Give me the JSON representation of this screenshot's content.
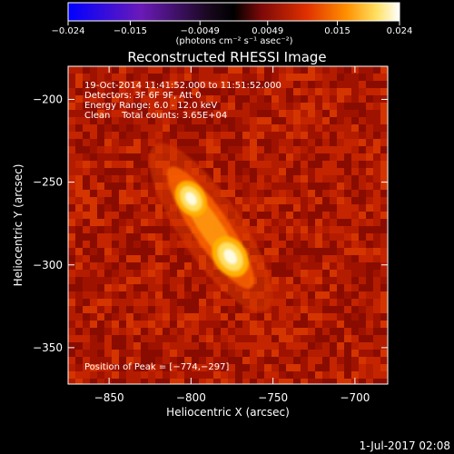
{
  "chart_data": {
    "type": "heatmap",
    "title": "Reconstructed RHESSI Image",
    "xlabel": "Heliocentric X (arcsec)",
    "ylabel": "Heliocentric Y (arcsec)",
    "xlim": [
      -875,
      -680
    ],
    "ylim": [
      -372,
      -180
    ],
    "x_ticks": [
      -850,
      -800,
      -750,
      -700
    ],
    "y_ticks": [
      -200,
      -250,
      -300,
      -350
    ],
    "x_tick_labels": [
      "−850",
      "−800",
      "−750",
      "−700"
    ],
    "y_tick_labels": [
      "−200",
      "−250",
      "−300",
      "−350"
    ],
    "colorbar": {
      "min": -0.024,
      "max": 0.024,
      "ticks": [
        -0.024,
        -0.015,
        -0.0049,
        0.0049,
        0.015,
        0.024
      ],
      "tick_labels": [
        "−0.024",
        "−0.015",
        "−0.0049",
        "0.0049",
        "0.015",
        "0.024"
      ],
      "unit_label": "(photons cm⁻² s⁻¹ asec⁻²)",
      "colormap": [
        "#0000ff",
        "#5a1ab4",
        "#2a0a3a",
        "#000000",
        "#a01010",
        "#ff6a00",
        "#ffb000",
        "#ffff80",
        "#ffffff"
      ]
    },
    "info_lines": [
      "19-Oct-2014 11:41:52.000 to 11:51:52.000",
      "Detectors: 3F 6F 9F, Att 0",
      "Energy Range: 6.0 - 12.0 keV",
      "Clean    Total counts: 3.65E+04"
    ],
    "peak_label": "Position of Peak = [−774,−297]",
    "sources": [
      {
        "x": -800,
        "y": -260,
        "peak": 0.021
      },
      {
        "x": -776,
        "y": -295,
        "peak": 0.024
      }
    ],
    "background_level": 0.009
  },
  "timestamp": "1-Jul-2017 02:08"
}
